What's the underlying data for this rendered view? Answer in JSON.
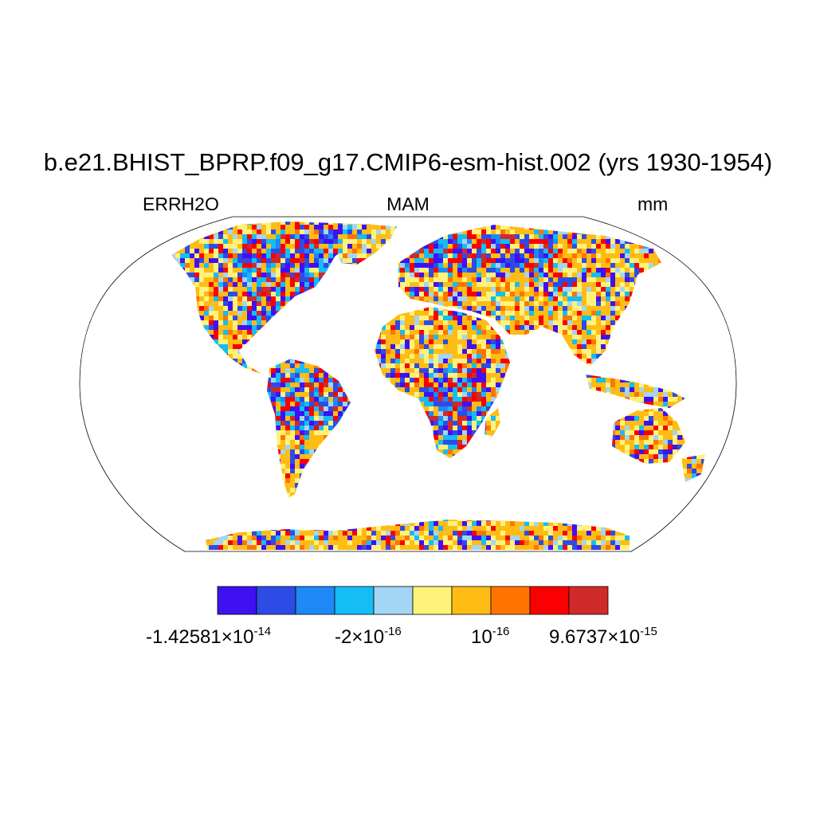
{
  "title": "b.e21.BHIST_BPRP.f09_g17.CMIP6-esm-hist.002 (yrs 1930-1954)",
  "left_label": "ERRH2O",
  "center_label": "MAM",
  "right_label": "mm",
  "colorbar": {
    "colors": [
      "#4010f2",
      "#2d4ce6",
      "#1e88f7",
      "#14bdf5",
      "#a2d6f4",
      "#fff27a",
      "#ffbc14",
      "#ff7400",
      "#fb0000",
      "#d12a2a"
    ],
    "labels": [
      {
        "mantissa": "-1.42581",
        "times": "×",
        "base": "10",
        "exp": "-14"
      },
      {
        "mantissa": "-2",
        "times": "×",
        "base": "10",
        "exp": "-16"
      },
      {
        "mantissa": "",
        "times": "",
        "base": "10",
        "exp": "-16"
      },
      {
        "mantissa": "9.6737",
        "times": "×",
        "base": "10",
        "exp": "-15"
      }
    ]
  }
}
